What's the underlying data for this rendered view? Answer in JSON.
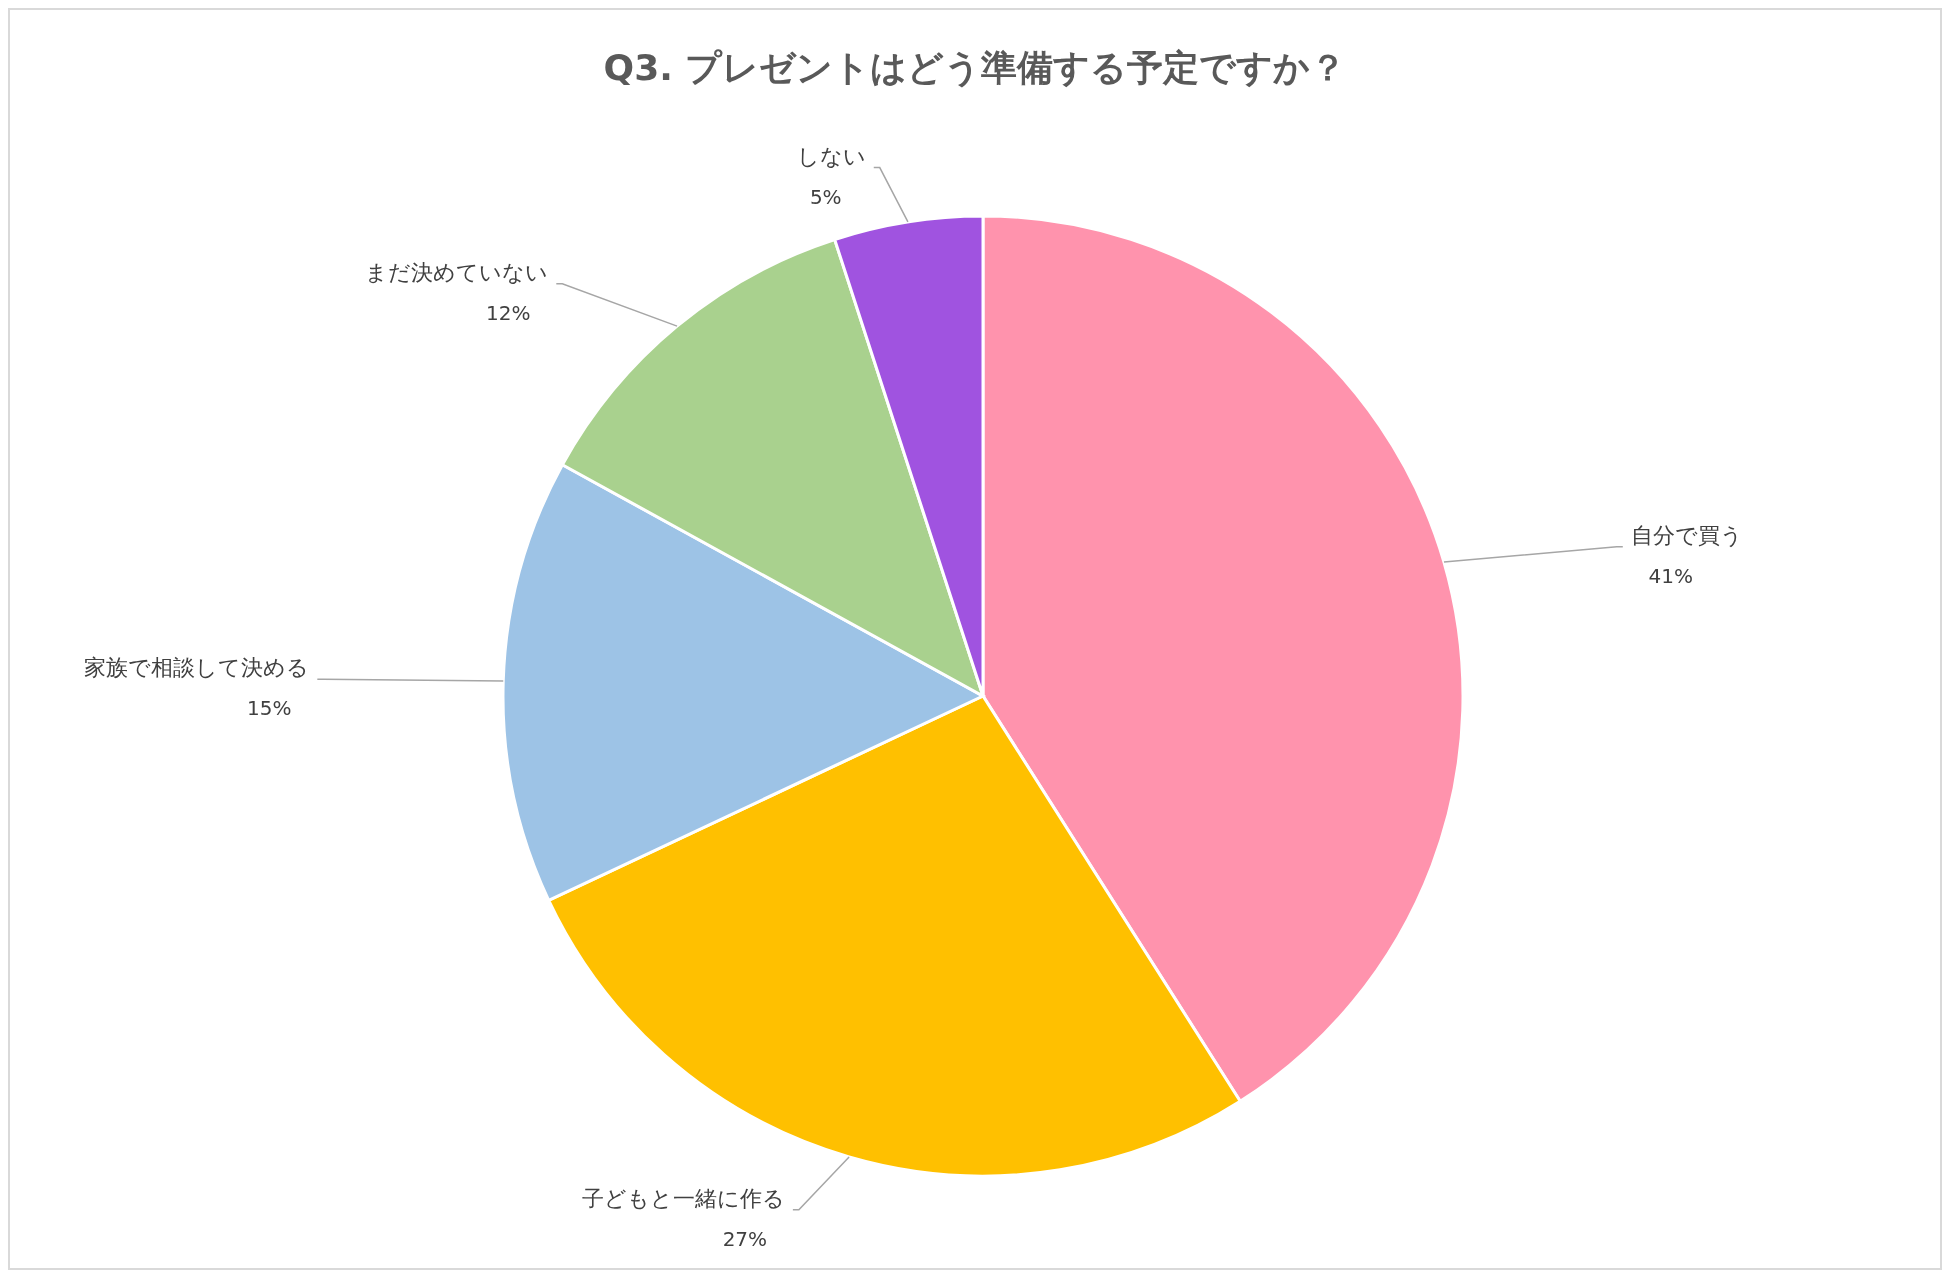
{
  "chart_data": {
    "type": "pie",
    "title": "Q3. プレゼントはどう準備する予定ですか？",
    "categories": [
      "自分で買う",
      "子どもと一緒に作る",
      "家族で相談して決める",
      "まだ決めていない",
      "しない"
    ],
    "values": [
      41,
      27,
      15,
      12,
      5
    ],
    "colors": [
      "#ff93ad",
      "#ffc000",
      "#9dc3e6",
      "#a9d18e",
      "#a053e0"
    ],
    "value_labels": [
      "41%",
      "27%",
      "15%",
      "12%",
      "5%"
    ]
  }
}
